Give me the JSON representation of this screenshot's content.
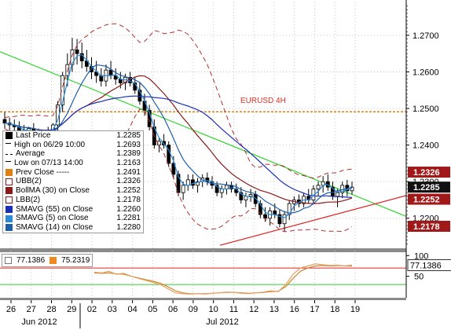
{
  "chart_data": [
    {
      "type": "candlestick",
      "title": "EURUSD 4H",
      "x_axis": {
        "days": [
          "26",
          "27",
          "28",
          "29",
          "02",
          "03",
          "04",
          "05",
          "06",
          "09",
          "10",
          "11",
          "12",
          "13",
          "16",
          "17",
          "18",
          "19"
        ],
        "months": [
          "Jun 2012",
          "Jul 2012"
        ]
      },
      "y_axis": {
        "ticks": [
          "1.2700",
          "1.2600",
          "1.2500",
          "1.2400",
          "1.2300",
          "1.2200"
        ],
        "ylim": [
          1.212,
          1.279
        ]
      },
      "price_tags": [
        {
          "value": "1.2326",
          "color": "#a01818"
        },
        {
          "value": "1.2285",
          "color": "#111111"
        },
        {
          "value": "1.2252",
          "color": "#a01818"
        },
        {
          "value": "1.2178",
          "color": "#a01818"
        }
      ],
      "annotations": [
        {
          "text": "EURUSD 4H",
          "color": "#e03020"
        }
      ],
      "prev_close": 1.2491,
      "legend": [
        {
          "label": "Last Price",
          "value": "1.2285",
          "swatch": "candle"
        },
        {
          "label": "High on 06/29 10:00",
          "value": "1.2693",
          "swatch": "tee-up"
        },
        {
          "label": "Average",
          "value": "1.2389",
          "swatch": "dash"
        },
        {
          "label": "Low on 07/13 14:00",
          "value": "1.2163",
          "swatch": "tee-down"
        },
        {
          "label": "Prev Close -----",
          "value": "1.2491",
          "swatch": "#e08010"
        },
        {
          "label": "UBB(2)",
          "value": "1.2326",
          "swatch": "outline"
        },
        {
          "label": "BollMA (30) on Close",
          "value": "1.2252",
          "swatch": "#8b1a1a"
        },
        {
          "label": "LBB(2)",
          "value": "1.2178",
          "swatch": "outline"
        },
        {
          "label": "SMAVG (55) on Close",
          "value": "1.2260",
          "swatch": "#1a2fb8"
        },
        {
          "label": "SMAVG (5) on Close",
          "value": "1.2281",
          "swatch": "#2a8ad8"
        },
        {
          "label": "SMAVG (14) on Close",
          "value": "1.2280",
          "swatch": "#1f5fa8"
        }
      ],
      "candles": [
        [
          1.247,
          1.249,
          1.2445,
          1.246
        ],
        [
          1.246,
          1.2475,
          1.244,
          1.2455
        ],
        [
          1.2455,
          1.247,
          1.243,
          1.245
        ],
        [
          1.245,
          1.2465,
          1.242,
          1.244
        ],
        [
          1.244,
          1.2455,
          1.241,
          1.2435
        ],
        [
          1.2435,
          1.245,
          1.24,
          1.2445
        ],
        [
          1.2445,
          1.246,
          1.242,
          1.243
        ],
        [
          1.243,
          1.2445,
          1.241,
          1.242
        ],
        [
          1.242,
          1.244,
          1.2405,
          1.243
        ],
        [
          1.243,
          1.245,
          1.2415,
          1.244
        ],
        [
          1.244,
          1.246,
          1.243,
          1.2455
        ],
        [
          1.2455,
          1.252,
          1.244,
          1.251
        ],
        [
          1.251,
          1.26,
          1.249,
          1.259
        ],
        [
          1.259,
          1.265,
          1.256,
          1.262
        ],
        [
          1.262,
          1.2693,
          1.26,
          1.266
        ],
        [
          1.266,
          1.269,
          1.262,
          1.265
        ],
        [
          1.265,
          1.268,
          1.261,
          1.263
        ],
        [
          1.263,
          1.266,
          1.26,
          1.2615
        ],
        [
          1.2615,
          1.264,
          1.258,
          1.26
        ],
        [
          1.26,
          1.263,
          1.257,
          1.259
        ],
        [
          1.259,
          1.261,
          1.256,
          1.2575
        ],
        [
          1.2575,
          1.262,
          1.256,
          1.2605
        ],
        [
          1.2605,
          1.263,
          1.258,
          1.259
        ],
        [
          1.259,
          1.261,
          1.2565,
          1.258
        ],
        [
          1.258,
          1.26,
          1.2555,
          1.257
        ],
        [
          1.257,
          1.2595,
          1.255,
          1.2585
        ],
        [
          1.2585,
          1.26,
          1.256,
          1.257
        ],
        [
          1.257,
          1.2585,
          1.254,
          1.255
        ],
        [
          1.255,
          1.257,
          1.251,
          1.252
        ],
        [
          1.252,
          1.254,
          1.248,
          1.2495
        ],
        [
          1.2495,
          1.251,
          1.244,
          1.245
        ],
        [
          1.245,
          1.247,
          1.239,
          1.24
        ],
        [
          1.24,
          1.242,
          1.238,
          1.241
        ],
        [
          1.241,
          1.243,
          1.239,
          1.24
        ],
        [
          1.24,
          1.241,
          1.234,
          1.235
        ],
        [
          1.235,
          1.237,
          1.231,
          1.232
        ],
        [
          1.232,
          1.233,
          1.226,
          1.227
        ],
        [
          1.227,
          1.23,
          1.225,
          1.229
        ],
        [
          1.229,
          1.232,
          1.2275,
          1.2305
        ],
        [
          1.2305,
          1.232,
          1.228,
          1.229
        ],
        [
          1.229,
          1.231,
          1.227,
          1.23
        ],
        [
          1.23,
          1.232,
          1.2285,
          1.231
        ],
        [
          1.231,
          1.2325,
          1.229,
          1.23
        ],
        [
          1.23,
          1.2315,
          1.228,
          1.229
        ],
        [
          1.229,
          1.23,
          1.226,
          1.227
        ],
        [
          1.227,
          1.229,
          1.2255,
          1.228
        ],
        [
          1.228,
          1.23,
          1.2265,
          1.229
        ],
        [
          1.229,
          1.23,
          1.227,
          1.228
        ],
        [
          1.228,
          1.2295,
          1.226,
          1.227
        ],
        [
          1.227,
          1.2285,
          1.224,
          1.225
        ],
        [
          1.225,
          1.227,
          1.223,
          1.226
        ],
        [
          1.226,
          1.228,
          1.2245,
          1.2265
        ],
        [
          1.2265,
          1.2275,
          1.223,
          1.224
        ],
        [
          1.224,
          1.225,
          1.22,
          1.221
        ],
        [
          1.221,
          1.223,
          1.219,
          1.22
        ],
        [
          1.22,
          1.223,
          1.218,
          1.222
        ],
        [
          1.222,
          1.224,
          1.22,
          1.221
        ],
        [
          1.221,
          1.2225,
          1.2175,
          1.2185
        ],
        [
          1.2185,
          1.222,
          1.2163,
          1.221
        ],
        [
          1.221,
          1.225,
          1.2195,
          1.224
        ],
        [
          1.224,
          1.226,
          1.222,
          1.225
        ],
        [
          1.225,
          1.2265,
          1.223,
          1.224
        ],
        [
          1.224,
          1.227,
          1.223,
          1.226
        ],
        [
          1.226,
          1.228,
          1.224,
          1.225
        ],
        [
          1.225,
          1.229,
          1.224,
          1.228
        ],
        [
          1.228,
          1.23,
          1.226,
          1.229
        ],
        [
          1.229,
          1.2315,
          1.227,
          1.23
        ],
        [
          1.23,
          1.232,
          1.2275,
          1.2285
        ],
        [
          1.2285,
          1.23,
          1.225,
          1.226
        ],
        [
          1.226,
          1.228,
          1.223,
          1.227
        ],
        [
          1.227,
          1.23,
          1.2255,
          1.229
        ],
        [
          1.229,
          1.2305,
          1.226,
          1.2275
        ],
        [
          1.2275,
          1.23,
          1.2265,
          1.2285
        ]
      ]
    },
    {
      "type": "line",
      "legend": [
        "77.1386",
        "75.2319"
      ],
      "y_axis": {
        "ticks": [
          "100",
          "50"
        ],
        "ylim": [
          0,
          110
        ]
      },
      "price_tags": [
        {
          "value": "77.1386",
          "color": "#ffffff"
        }
      ],
      "reference_levels": [
        70,
        30
      ],
      "series": [
        {
          "values": [
            60,
            58,
            62,
            55,
            57,
            50,
            45,
            40,
            35,
            30,
            20,
            10,
            8,
            7,
            8,
            7,
            9,
            10,
            12,
            11,
            9,
            8,
            10,
            12,
            15,
            13,
            30,
            55,
            70,
            75,
            80,
            78,
            76,
            77,
            75,
            77
          ]
        },
        {
          "values": [
            58,
            57,
            58,
            56,
            55,
            50,
            46,
            42,
            38,
            33,
            25,
            15,
            10,
            8,
            8,
            8,
            9,
            10,
            11,
            11,
            10,
            9,
            10,
            11,
            13,
            14,
            25,
            45,
            62,
            70,
            75,
            76,
            75,
            76,
            75,
            75
          ]
        }
      ]
    }
  ],
  "colors": {
    "candle_up": "#000000",
    "candle_down": "#000000",
    "boll_ma": "#8b1a1a",
    "bands": "#b03030",
    "sma55": "#1a2fb8",
    "sma5": "#2a8ad8",
    "sma14": "#1f5fa8",
    "trend_green": "#33d633",
    "trend_red": "#e02020",
    "prev_close": "#e08010",
    "rsi1": "#e8a060",
    "rsi2": "#cc8833",
    "rsi_ref_high": "#e02020",
    "rsi_ref_low": "#33cc33"
  }
}
